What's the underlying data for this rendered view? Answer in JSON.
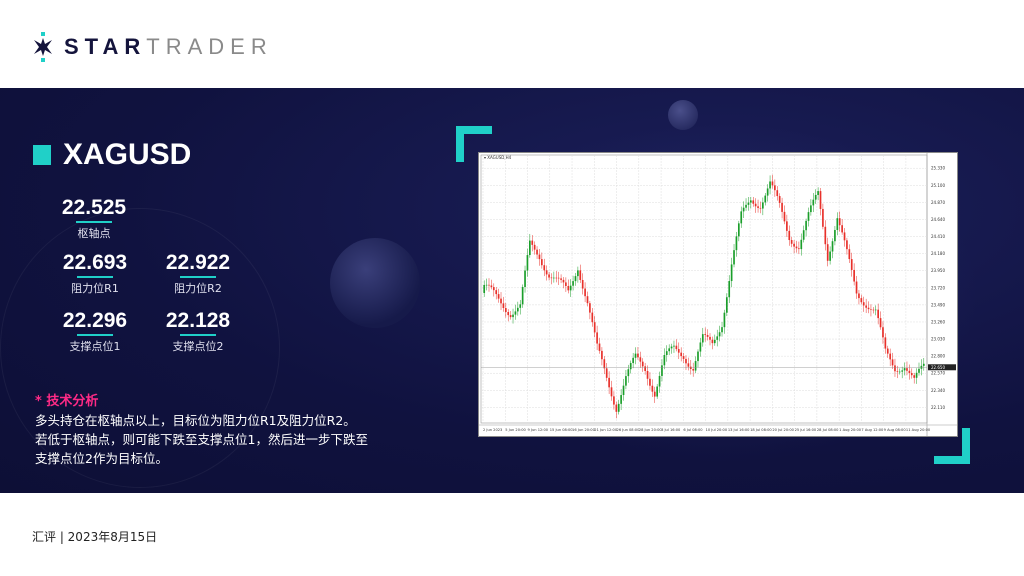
{
  "brand": {
    "name_bold": "STAR",
    "name_light": "TRADER"
  },
  "symbol": "XAGUSD",
  "levels": {
    "pivot": {
      "value": "22.525",
      "label": "枢轴点"
    },
    "r1": {
      "value": "22.693",
      "label": "阻力位R1"
    },
    "r2": {
      "value": "22.922",
      "label": "阻力位R2"
    },
    "s1": {
      "value": "22.296",
      "label": "支撑点位1"
    },
    "s2": {
      "value": "22.128",
      "label": "支撑点位2"
    }
  },
  "analysis": {
    "heading": "* 技术分析",
    "lines": [
      "多头持仓在枢轴点以上，目标位为阻力位R1及阻力位R2。",
      "若低于枢轴点，则可能下跌至支撑点位1，然后进一步下跌至",
      "支撑点位2作为目标位。"
    ]
  },
  "footer": "汇评 | 2023年8月15日",
  "colors": {
    "accent": "#20d0c8",
    "navy": "#10123f",
    "heading": "#ff2a86",
    "bull": "#1a9e2a",
    "bear": "#e8302a"
  },
  "chart_data": {
    "type": "candlestick",
    "title": "XAGUSD,H4",
    "ylim": [
      21.9,
      25.4
    ],
    "grid": true,
    "y_ticks": [
      "25.330",
      "25.100",
      "24.870",
      "24.640",
      "24.410",
      "24.180",
      "23.950",
      "23.720",
      "23.490",
      "23.260",
      "23.030",
      "22.800",
      "22.570",
      "22.340",
      "22.110"
    ],
    "x_ticks": [
      "2 Jun 2023",
      "5 Jun 20:00",
      "9 Jun 12:00",
      "15 Jun 08:00",
      "16 Jun 20:00",
      "21 Jun 12:00",
      "26 Jun 08:00",
      "28 Jun 20:00",
      "3 Jul 16:00",
      "6 Jul 08:00",
      "10 Jul 20:00",
      "13 Jul 16:00",
      "18 Jul 08:00",
      "20 Jul 20:00",
      "25 Jul 16:00",
      "28 Jul 08:00",
      "1 Aug 20:00",
      "7 Aug 12:00",
      "9 Aug 08:00",
      "11 Aug 20:00"
    ],
    "current_price": "22.650",
    "closes": [
      23.65,
      23.53,
      23.4,
      23.46,
      24.29,
      24.16,
      23.91,
      23.78,
      23.65,
      24.03,
      23.53,
      22.89,
      22.51,
      22.13,
      22.51,
      22.76,
      22.64,
      22.32,
      22.76,
      22.89,
      22.83,
      22.64,
      23.02,
      22.96,
      23.27,
      24.03,
      24.67,
      24.92,
      24.86,
      25.11,
      24.8,
      24.42,
      24.29,
      24.67,
      24.99,
      24.16,
      24.67,
      24.16,
      23.65,
      23.53,
      23.4,
      22.83,
      22.64,
      22.7,
      22.45,
      22.65
    ]
  }
}
